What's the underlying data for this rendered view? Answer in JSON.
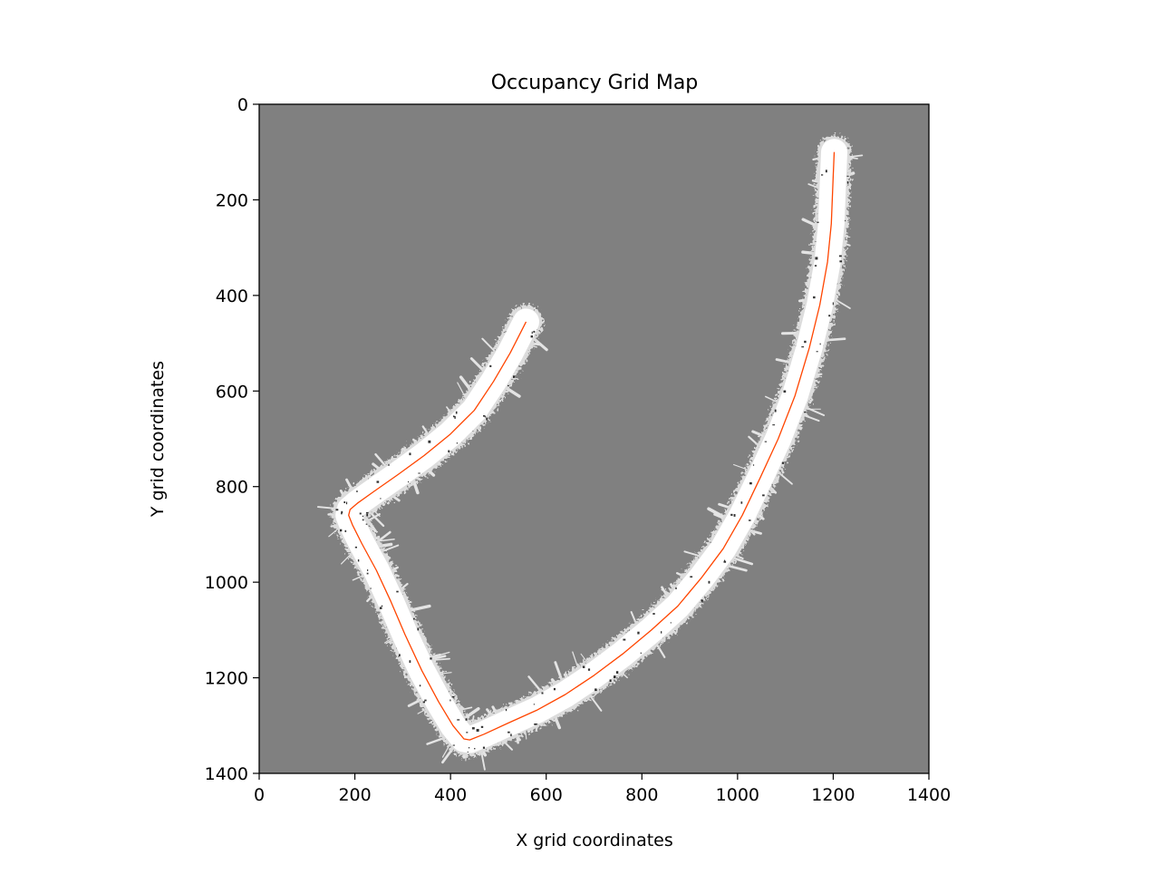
{
  "chart_data": {
    "type": "heatmap",
    "title": "Occupancy Grid Map",
    "xlabel": "X grid coordinates",
    "ylabel": "Y grid coordinates",
    "xlim": [
      0,
      1400
    ],
    "ylim": [
      1400,
      0
    ],
    "y_axis_inverted": true,
    "x_ticks": [
      "0",
      "200",
      "400",
      "600",
      "800",
      "1000",
      "1200",
      "1400"
    ],
    "y_ticks": [
      "0",
      "200",
      "400",
      "600",
      "800",
      "1000",
      "1200",
      "1400"
    ],
    "grid": false,
    "legend": "none",
    "grid_values": {
      "unknown_color": "#808080",
      "free_color": "#ffffff",
      "occupied_color": "#000000"
    },
    "free_corridor_width": 55,
    "series": [
      {
        "type": "line",
        "color": "#ff4500",
        "x": [
          1202,
          1200,
          1196,
          1188,
          1172,
          1150,
          1120,
          1085,
          1048,
          1010,
          970,
          925,
          875,
          820,
          760,
          700,
          640,
          580,
          520,
          470,
          440,
          428,
          405,
          375,
          340,
          305,
          275,
          245,
          215,
          195,
          187,
          190,
          205,
          240,
          290,
          345,
          400,
          450,
          490,
          525,
          558
        ],
        "y": [
          100,
          150,
          250,
          330,
          420,
          510,
          610,
          700,
          780,
          860,
          930,
          990,
          1050,
          1100,
          1150,
          1195,
          1235,
          1268,
          1295,
          1318,
          1330,
          1328,
          1300,
          1250,
          1185,
          1110,
          1040,
          975,
          920,
          880,
          860,
          848,
          835,
          810,
          775,
          735,
          690,
          640,
          580,
          520,
          455
        ]
      }
    ]
  }
}
